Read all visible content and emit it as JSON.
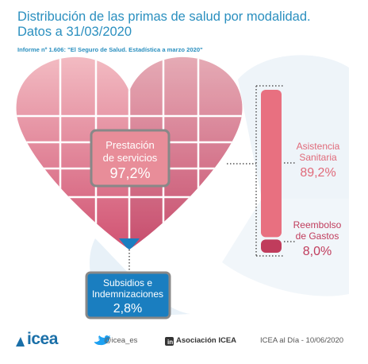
{
  "header": {
    "title_line1": "Distribución de las primas de salud por modalidad.",
    "title_line2": "Datos a 31/03/2020",
    "subtitle": "Informe nº 1.606: \"El Seguro de Salud. Estadística a marzo 2020\""
  },
  "chart_data": {
    "type": "bar",
    "title": "Distribución de las primas de salud por modalidad. Datos a 31/03/2020",
    "segments": [
      {
        "label": "Prestación de servicios",
        "value": 97.2,
        "display": "97,2%"
      },
      {
        "label": "Subsidios e Indemnizaciones",
        "value": 2.8,
        "display": "2,8%"
      }
    ],
    "breakdown": {
      "of": "Prestación de servicios",
      "items": [
        {
          "label": "Asistencia Sanitaria",
          "value": 89.2,
          "display": "89,2%"
        },
        {
          "label": "Reembolso de Gastos",
          "value": 8.0,
          "display": "8,0%"
        }
      ]
    },
    "colors": {
      "heart_top": "#f4c0c6",
      "heart_bottom": "#d05070",
      "asistencia": "#e87080",
      "reembolso": "#c03c5c",
      "subsidios": "#1a7ec0",
      "box_border": "#888888"
    }
  },
  "labels": {
    "prestacion_line1": "Prestación",
    "prestacion_line2": "de servicios",
    "asistencia_line1": "Asistencia",
    "asistencia_line2": "Sanitaria",
    "reembolso_line1": "Reembolso",
    "reembolso_line2": "de Gastos",
    "subsidios_line1": "Subsidios e",
    "subsidios_line2": "Indemnizaciones"
  },
  "footer": {
    "logo_text": "icea",
    "twitter": "@icea_es",
    "twitter_icon": "twitter-bird-icon",
    "linkedin": "Asociación ICEA",
    "linkedin_icon": "linkedin-icon",
    "source": "ICEA al Día - 10/06/2020"
  }
}
